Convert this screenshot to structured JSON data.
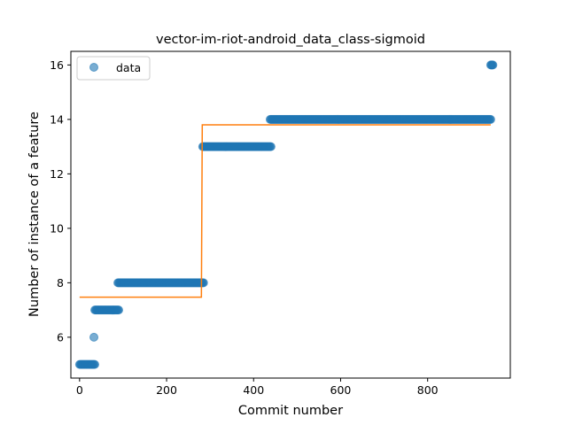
{
  "chart_data": {
    "type": "scatter",
    "title": "vector-im-riot-android_data_class-sigmoid",
    "xlabel": "Commit number",
    "ylabel": "Number of instance of a feature",
    "xlim": [
      -20,
      990
    ],
    "ylim": [
      4.5,
      16.5
    ],
    "xticks": [
      0,
      200,
      400,
      600,
      800
    ],
    "yticks": [
      6,
      8,
      10,
      12,
      14,
      16
    ],
    "grid": false,
    "legend": {
      "position": "top-left",
      "entries": [
        "data"
      ]
    },
    "colors": {
      "data": "#1f77b4",
      "fit": "#ff7f0e"
    },
    "series": [
      {
        "name": "data",
        "kind": "points",
        "segments": [
          {
            "y": 5,
            "x_start": 0,
            "x_end": 35
          },
          {
            "y": 6,
            "x_start": 33,
            "x_end": 33
          },
          {
            "y": 7,
            "x_start": 35,
            "x_end": 90
          },
          {
            "y": 8,
            "x_start": 88,
            "x_end": 285
          },
          {
            "y": 13,
            "x_start": 283,
            "x_end": 440
          },
          {
            "y": 14,
            "x_start": 438,
            "x_end": 945
          },
          {
            "y": 16,
            "x_start": 945,
            "x_end": 950
          }
        ]
      },
      {
        "kind": "line",
        "x": [
          0,
          280,
          282,
          945
        ],
        "y": [
          7.47,
          7.47,
          13.8,
          13.8
        ]
      }
    ]
  }
}
